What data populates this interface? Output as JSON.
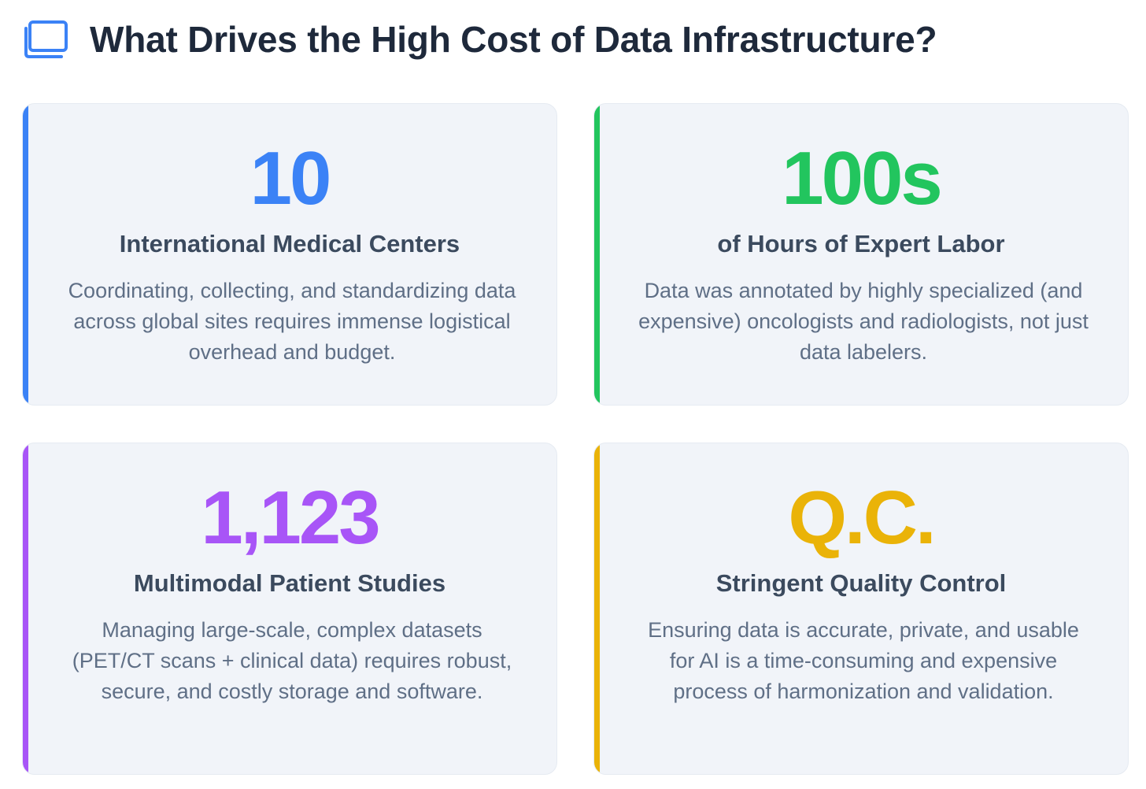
{
  "header": {
    "title": "What Drives the High Cost of Data Infrastructure?",
    "icon": "screen-icon",
    "icon_color": "#3b82f6"
  },
  "cards": [
    {
      "value": "10",
      "label": "International Medical Centers",
      "description": "Coordinating, collecting, and standardizing data across global sites requires immense logistical overhead and budget.",
      "color": "#3b82f6"
    },
    {
      "value": "100s",
      "label": "of Hours of Expert Labor",
      "description": "Data was annotated by highly specialized (and expensive) oncologists and radiologists, not just data labelers.",
      "color": "#22c55e"
    },
    {
      "value": "1,123",
      "label": "Multimodal Patient Studies",
      "description": "Managing large-scale, complex datasets (PET/CT scans + clinical data) requires robust, secure, and costly storage and software.",
      "color": "#a855f7"
    },
    {
      "value": "Q.C.",
      "label": "Stringent Quality Control",
      "description": "Ensuring data is accurate, private, and usable for AI is a time-consuming and expensive process of harmonization and validation.",
      "color": "#eab308"
    }
  ]
}
